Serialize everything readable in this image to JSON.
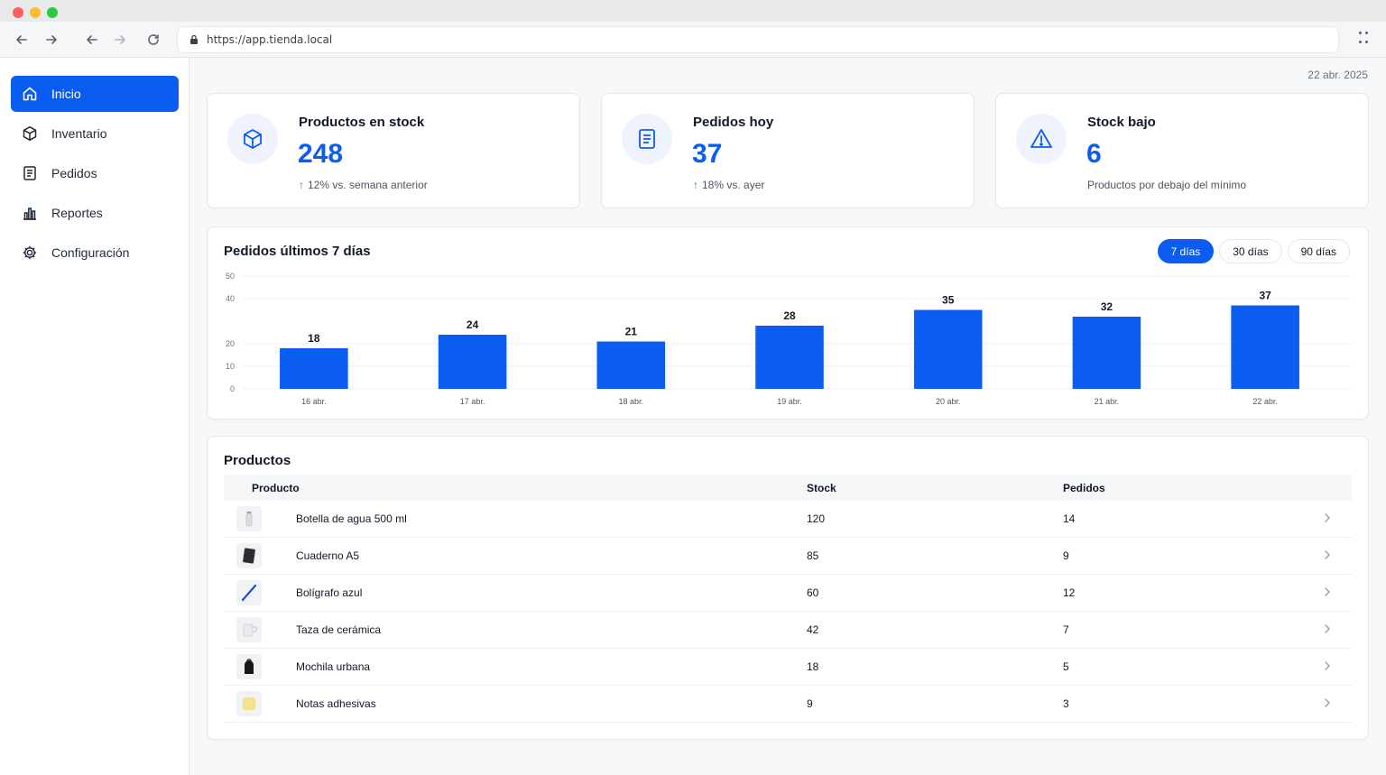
{
  "browser": {
    "url": "https://app.tienda.local"
  },
  "sidebar": {
    "items": [
      {
        "label": "Inicio",
        "icon": "home-icon",
        "active": true
      },
      {
        "label": "Inventario",
        "icon": "box-icon",
        "active": false
      },
      {
        "label": "Pedidos",
        "icon": "document-icon",
        "active": false
      },
      {
        "label": "Reportes",
        "icon": "bar-chart-icon",
        "active": false
      },
      {
        "label": "Configuración",
        "icon": "gear-icon",
        "active": false
      }
    ]
  },
  "header": {
    "date": "22 abr. 2025"
  },
  "stats": [
    {
      "title": "Productos en stock",
      "value": "248",
      "sub": "12% vs. semana anterior",
      "trend": "up",
      "icon": "box-icon"
    },
    {
      "title": "Pedidos hoy",
      "value": "37",
      "sub": "18% vs. ayer",
      "trend": "up",
      "icon": "document-icon"
    },
    {
      "title": "Stock bajo",
      "value": "6",
      "sub": "Productos por debajo del mínimo",
      "trend": "none",
      "icon": "warning-icon"
    }
  ],
  "chart_section": {
    "title": "Pedidos últimos 7 días",
    "ranges": [
      {
        "label": "7 días",
        "active": true
      },
      {
        "label": "30 días",
        "active": false
      },
      {
        "label": "90 días",
        "active": false
      }
    ]
  },
  "chart_data": {
    "type": "bar",
    "categories": [
      "16 abr.",
      "17 abr.",
      "18 abr.",
      "19 abr.",
      "20 abr.",
      "21 abr.",
      "22 abr."
    ],
    "values": [
      18,
      24,
      21,
      28,
      35,
      32,
      37
    ],
    "yticks": [
      0,
      10,
      20,
      40,
      50
    ],
    "ylim": [
      0,
      50
    ],
    "grid": true,
    "bar_color": "#0b5cf0"
  },
  "products": {
    "title": "Productos",
    "columns": [
      "Producto",
      "Stock",
      "Pedidos"
    ],
    "rows": [
      {
        "name": "Botella de agua 500 ml",
        "stock": "120",
        "orders": "14",
        "thumb": "bottle-icon"
      },
      {
        "name": "Cuaderno A5",
        "stock": "85",
        "orders": "9",
        "thumb": "notebook-icon"
      },
      {
        "name": "Bolígrafo azul",
        "stock": "60",
        "orders": "12",
        "thumb": "pen-icon"
      },
      {
        "name": "Taza de cerámica",
        "stock": "42",
        "orders": "7",
        "thumb": "mug-icon"
      },
      {
        "name": "Mochila urbana",
        "stock": "18",
        "orders": "5",
        "thumb": "backpack-icon"
      },
      {
        "name": "Notas adhesivas",
        "stock": "9",
        "orders": "3",
        "thumb": "sticky-note-icon"
      }
    ]
  },
  "colors": {
    "accent": "#0b5cf0",
    "positive": "#16a34a"
  }
}
